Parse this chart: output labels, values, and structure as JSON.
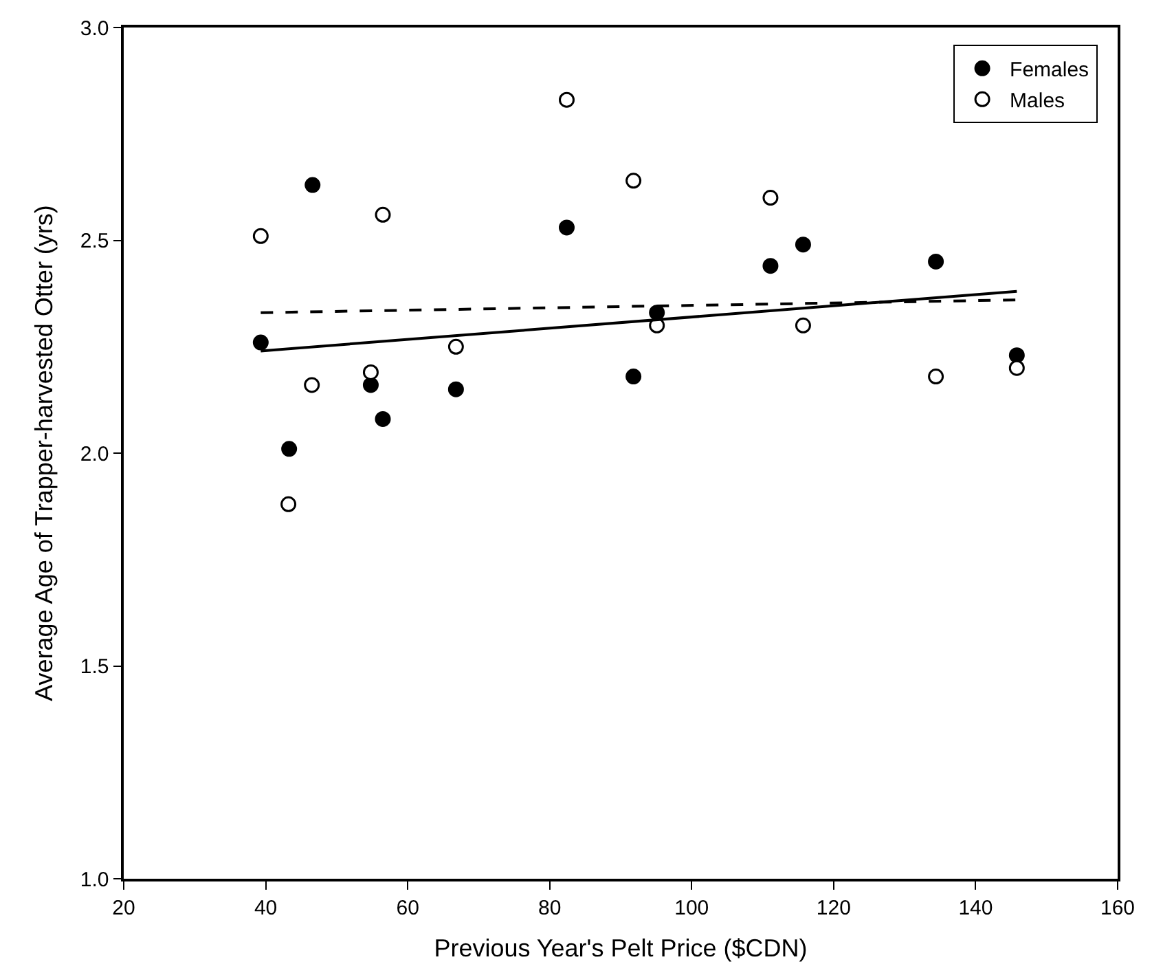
{
  "chart_data": {
    "type": "scatter",
    "xlabel": "Previous Year's Pelt Price ($CDN)",
    "ylabel": "Average Age of Trapper-harvested Otter (yrs)",
    "xlim": [
      20,
      160
    ],
    "xticks": [
      20,
      40,
      60,
      80,
      100,
      120,
      140,
      160
    ],
    "ylim": [
      1,
      3
    ],
    "yticks": [
      {
        "value": 1,
        "label": "1.0"
      },
      {
        "value": 1.5,
        "label": "1.5"
      },
      {
        "value": 2,
        "label": "2.0"
      },
      {
        "value": 2.5,
        "label": "2.5"
      },
      {
        "value": 3,
        "label": "3.0"
      }
    ],
    "legend": "top right",
    "marker": "circle",
    "series": [
      {
        "name": "Females",
        "color": "#000000",
        "x": [
          39.3,
          46.6,
          43.3,
          54.8,
          56.5,
          66.8,
          82.4,
          91.8,
          95.1,
          111.1,
          115.7,
          134.4,
          145.8
        ],
        "values": [
          2.26,
          2.63,
          2.01,
          2.16,
          2.08,
          2.15,
          2.53,
          2.18,
          2.33,
          2.44,
          2.49,
          2.45,
          2.23
        ]
      },
      {
        "name": "Males",
        "color": "#ffffff",
        "x": [
          39.3,
          43.2,
          46.5,
          54.8,
          56.5,
          66.8,
          82.4,
          91.8,
          95.1,
          111.1,
          115.7,
          134.4,
          145.8
        ],
        "values": [
          2.51,
          1.88,
          2.16,
          2.19,
          2.56,
          2.25,
          2.83,
          2.64,
          2.3,
          2.6,
          2.3,
          2.18,
          2.2
        ]
      },
      {
        "type": "line",
        "color": "#000000",
        "line_style": "solid",
        "marker": "none",
        "x": [
          39.3,
          145.8
        ],
        "values": [
          2.24,
          2.38
        ]
      },
      {
        "type": "line",
        "color": "#000000",
        "line_style": "dashed",
        "marker": "none",
        "x": [
          39.3,
          145.8
        ],
        "values": [
          2.33,
          2.36
        ]
      }
    ]
  }
}
